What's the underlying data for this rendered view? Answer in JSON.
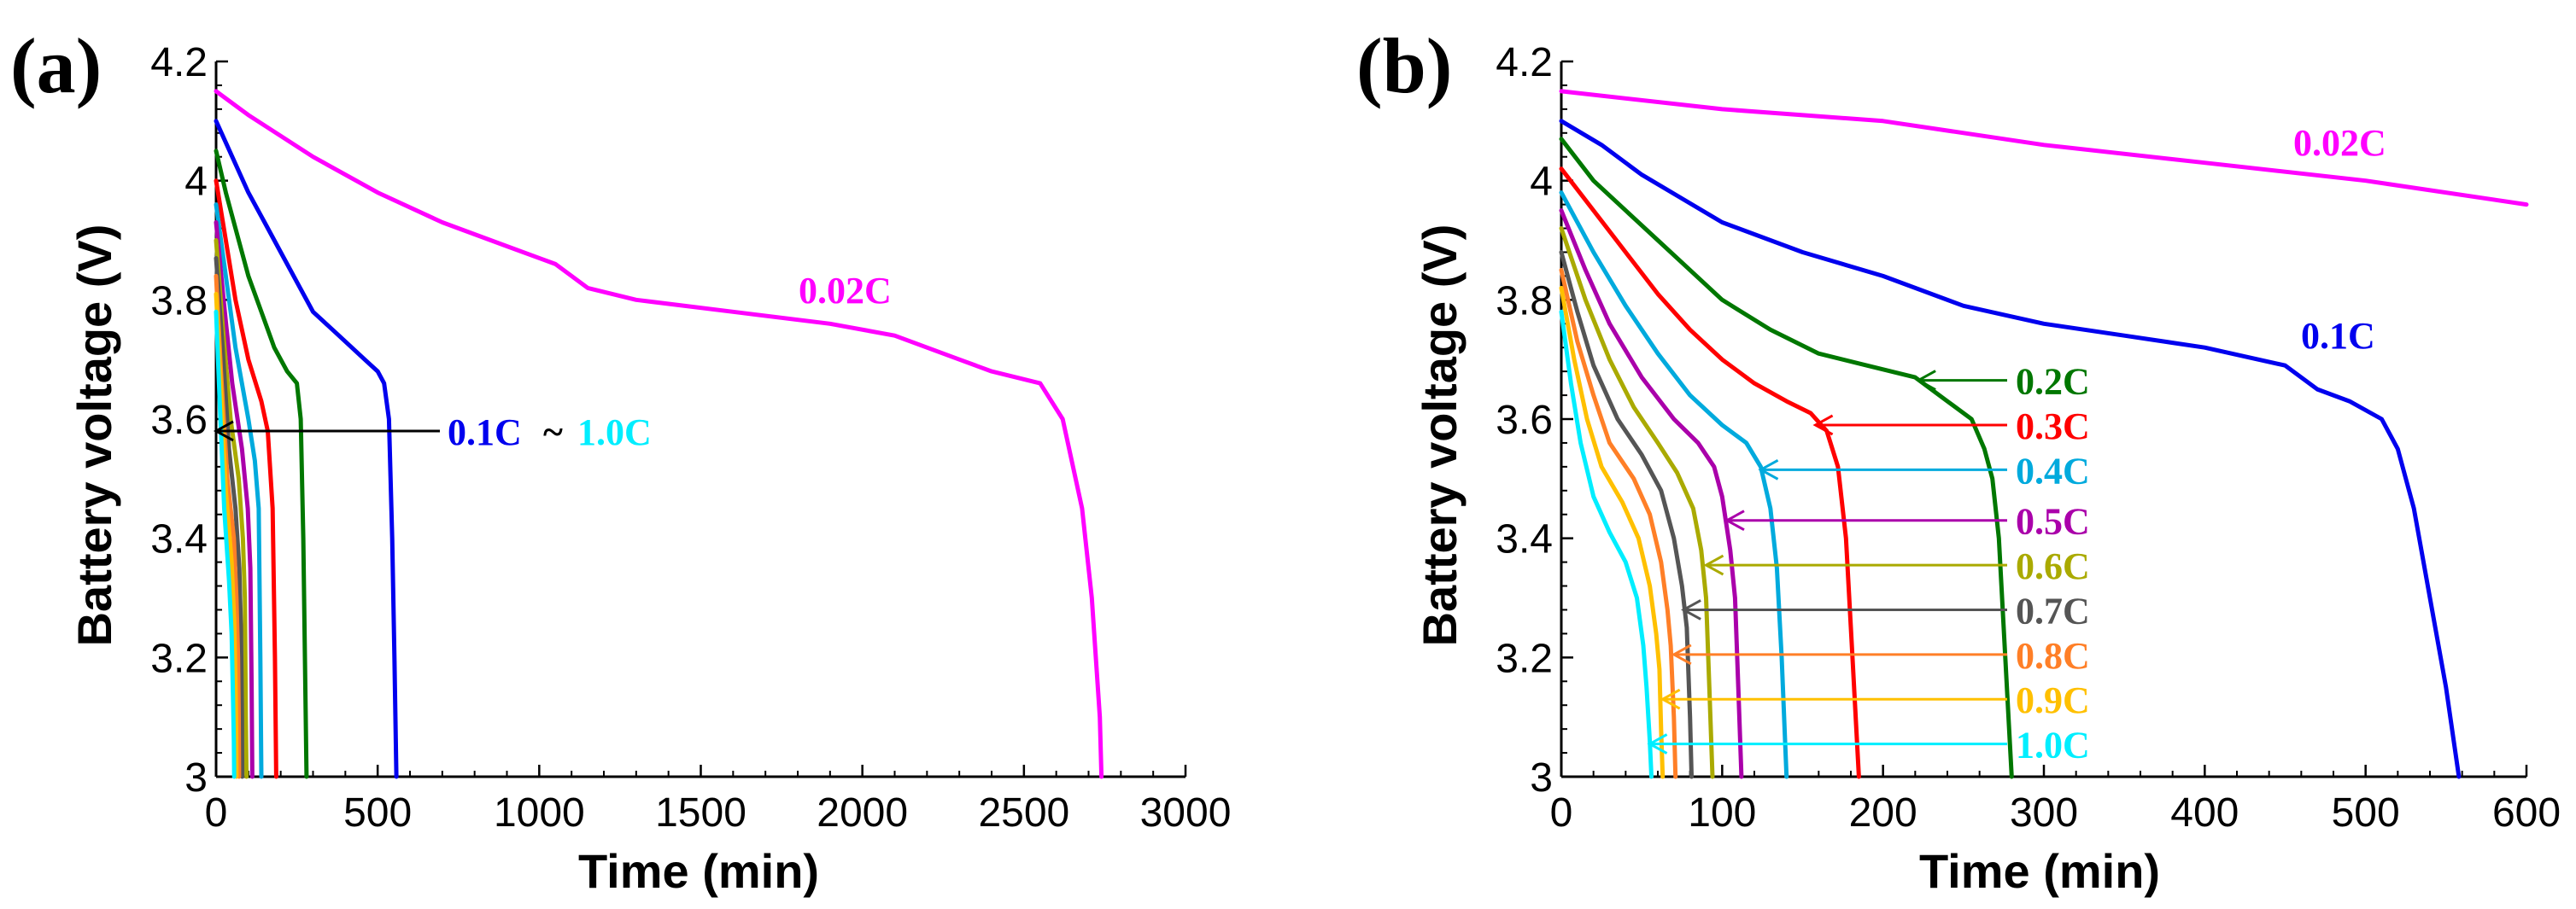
{
  "figure": {
    "panel_a_label": "(a)",
    "panel_b_label": "(b)"
  },
  "colors": {
    "0.02C": "#ff00ff",
    "0.1C": "#0000ee",
    "0.2C": "#007700",
    "0.3C": "#ff0000",
    "0.4C": "#00aadd",
    "0.5C": "#aa00aa",
    "0.6C": "#aaaa00",
    "0.7C": "#555555",
    "0.8C": "#ff7f27",
    "0.9C": "#ffc000",
    "1.0C": "#00eeff"
  },
  "chart_data": [
    {
      "type": "line",
      "panel": "(a)",
      "xlabel": "Time (min)",
      "ylabel": "Battery voltage (V)",
      "xlim": [
        0,
        3000
      ],
      "ylim": [
        3,
        4.2
      ],
      "xticks": [
        0,
        500,
        1000,
        1500,
        2000,
        2500,
        3000
      ],
      "xtick_labels": [
        "0",
        "500",
        "1000",
        "1500",
        "2000",
        "2500",
        "3000"
      ],
      "yticks": [
        3,
        3.2,
        3.4,
        3.6,
        3.8,
        4,
        4.2
      ],
      "ytick_labels": [
        "3",
        "3.2",
        "3.4",
        "3.6",
        "3.8",
        "4",
        "4.2"
      ],
      "annotations": [
        {
          "text": "0.02C",
          "color": "#ff00ff"
        },
        {
          "range_start": "0.1C",
          "range_sep": "~",
          "range_end": "1.0C",
          "start_color": "#0000ee",
          "end_color": "#00eeff",
          "points_to": [
            0,
            3.58
          ]
        }
      ],
      "series": [
        {
          "name": "0.02C",
          "x": [
            0,
            100,
            300,
            500,
            700,
            900,
            1050,
            1150,
            1300,
            1600,
            1900,
            2100,
            2300,
            2400,
            2550,
            2620,
            2680,
            2710,
            2735,
            2740
          ],
          "y": [
            4.15,
            4.11,
            4.04,
            3.98,
            3.93,
            3.89,
            3.86,
            3.82,
            3.8,
            3.78,
            3.76,
            3.74,
            3.7,
            3.68,
            3.66,
            3.6,
            3.45,
            3.3,
            3.1,
            3.0
          ]
        },
        {
          "name": "0.1C",
          "x": [
            0,
            50,
            100,
            150,
            200,
            250,
            300,
            380,
            420,
            460,
            500,
            520,
            535,
            545,
            552,
            558
          ],
          "y": [
            4.1,
            4.04,
            3.98,
            3.93,
            3.88,
            3.83,
            3.78,
            3.74,
            3.72,
            3.7,
            3.68,
            3.66,
            3.6,
            3.4,
            3.2,
            3.0
          ]
        },
        {
          "name": "0.2C",
          "x": [
            0,
            30,
            60,
            100,
            140,
            180,
            220,
            250,
            262,
            270,
            275,
            280
          ],
          "y": [
            4.05,
            3.98,
            3.92,
            3.84,
            3.78,
            3.72,
            3.68,
            3.66,
            3.6,
            3.4,
            3.2,
            3.0
          ]
        },
        {
          "name": "0.3C",
          "x": [
            0,
            30,
            60,
            100,
            140,
            160,
            175,
            182,
            186
          ],
          "y": [
            4.0,
            3.9,
            3.8,
            3.7,
            3.63,
            3.58,
            3.45,
            3.2,
            3.0
          ]
        },
        {
          "name": "0.4C",
          "x": [
            0,
            30,
            60,
            100,
            120,
            132,
            137,
            140
          ],
          "y": [
            3.96,
            3.84,
            3.72,
            3.6,
            3.53,
            3.45,
            3.2,
            3.0
          ]
        },
        {
          "name": "0.5C",
          "x": [
            0,
            25,
            50,
            80,
            98,
            106,
            110,
            112
          ],
          "y": [
            3.93,
            3.79,
            3.66,
            3.55,
            3.45,
            3.35,
            3.15,
            3.0
          ]
        },
        {
          "name": "0.6C",
          "x": [
            0,
            20,
            45,
            70,
            83,
            89,
            92,
            94
          ],
          "y": [
            3.9,
            3.76,
            3.6,
            3.5,
            3.4,
            3.3,
            3.1,
            3.0
          ]
        },
        {
          "name": "0.7C",
          "x": [
            0,
            20,
            40,
            60,
            72,
            77,
            80,
            81
          ],
          "y": [
            3.87,
            3.72,
            3.55,
            3.45,
            3.35,
            3.25,
            3.1,
            3.0
          ]
        },
        {
          "name": "0.8C",
          "x": [
            0,
            15,
            35,
            55,
            63,
            68,
            70,
            71
          ],
          "y": [
            3.84,
            3.68,
            3.5,
            3.4,
            3.3,
            3.2,
            3.1,
            3.0
          ]
        },
        {
          "name": "0.9C",
          "x": [
            0,
            15,
            30,
            48,
            56,
            60,
            62,
            63
          ],
          "y": [
            3.81,
            3.65,
            3.48,
            3.36,
            3.26,
            3.16,
            3.08,
            3.0
          ]
        },
        {
          "name": "1.0C",
          "x": [
            0,
            12,
            25,
            40,
            48,
            52,
            55,
            56
          ],
          "y": [
            3.78,
            3.62,
            3.45,
            3.33,
            3.24,
            3.14,
            3.06,
            3.0
          ]
        }
      ]
    },
    {
      "type": "line",
      "panel": "(b)",
      "xlabel": "Time (min)",
      "ylabel": "Battery voltage (V)",
      "xlim": [
        0,
        600
      ],
      "ylim": [
        3,
        4.2
      ],
      "xticks": [
        0,
        100,
        200,
        300,
        400,
        500,
        600
      ],
      "xtick_labels": [
        "0",
        "100",
        "200",
        "300",
        "400",
        "500",
        "600"
      ],
      "yticks": [
        3,
        3.2,
        3.4,
        3.6,
        3.8,
        4,
        4.2
      ],
      "ytick_labels": [
        "3",
        "3.2",
        "3.4",
        "3.6",
        "3.8",
        "4",
        "4.2"
      ],
      "annotations": [
        {
          "text": "0.02C",
          "color": "#ff00ff"
        },
        {
          "text": "0.1C",
          "color": "#0000ee"
        },
        {
          "text": "0.2C",
          "color": "#007700",
          "points_to": [
            222,
            3.665
          ]
        },
        {
          "text": "0.3C",
          "color": "#ff0000",
          "points_to": [
            158,
            3.59
          ]
        },
        {
          "text": "0.4C",
          "color": "#00aadd",
          "points_to": [
            124,
            3.515
          ]
        },
        {
          "text": "0.5C",
          "color": "#aa00aa",
          "points_to": [
            103,
            3.43
          ]
        },
        {
          "text": "0.6C",
          "color": "#aaaa00",
          "points_to": [
            90,
            3.355
          ]
        },
        {
          "text": "0.7C",
          "color": "#555555",
          "points_to": [
            76,
            3.28
          ]
        },
        {
          "text": "0.8C",
          "color": "#ff7f27",
          "points_to": [
            70,
            3.205
          ]
        },
        {
          "text": "0.9C",
          "color": "#ffc000",
          "points_to": [
            63,
            3.13
          ]
        },
        {
          "text": "1.0C",
          "color": "#00eeff",
          "points_to": [
            55,
            3.055
          ]
        }
      ],
      "series": [
        {
          "name": "0.02C",
          "x": [
            0,
            100,
            200,
            300,
            400,
            500,
            600
          ],
          "y": [
            4.15,
            4.12,
            4.1,
            4.06,
            4.03,
            4.0,
            3.96
          ]
        },
        {
          "name": "0.1C",
          "x": [
            0,
            25,
            50,
            75,
            100,
            150,
            200,
            250,
            300,
            350,
            400,
            450,
            470,
            490,
            510,
            520,
            530,
            540,
            550,
            558
          ],
          "y": [
            4.1,
            4.06,
            4.01,
            3.97,
            3.93,
            3.88,
            3.84,
            3.79,
            3.76,
            3.74,
            3.72,
            3.69,
            3.65,
            3.63,
            3.6,
            3.55,
            3.45,
            3.3,
            3.15,
            3.0
          ]
        },
        {
          "name": "0.2C",
          "x": [
            0,
            20,
            40,
            60,
            80,
            100,
            130,
            160,
            190,
            220,
            240,
            255,
            263,
            268,
            272,
            276,
            280
          ],
          "y": [
            4.07,
            4.0,
            3.95,
            3.9,
            3.85,
            3.8,
            3.75,
            3.71,
            3.69,
            3.67,
            3.63,
            3.6,
            3.55,
            3.5,
            3.4,
            3.2,
            3.0
          ]
        },
        {
          "name": "0.3C",
          "x": [
            0,
            20,
            40,
            60,
            80,
            100,
            120,
            140,
            155,
            165,
            172,
            177,
            181,
            185
          ],
          "y": [
            4.02,
            3.95,
            3.88,
            3.81,
            3.75,
            3.7,
            3.66,
            3.63,
            3.61,
            3.58,
            3.52,
            3.4,
            3.2,
            3.0
          ]
        },
        {
          "name": "0.4C",
          "x": [
            0,
            20,
            40,
            60,
            80,
            100,
            115,
            124,
            130,
            134,
            137,
            140
          ],
          "y": [
            3.98,
            3.88,
            3.79,
            3.71,
            3.64,
            3.59,
            3.56,
            3.52,
            3.45,
            3.35,
            3.2,
            3.0
          ]
        },
        {
          "name": "0.5C",
          "x": [
            0,
            15,
            30,
            50,
            70,
            85,
            95,
            100,
            105,
            108,
            110,
            112
          ],
          "y": [
            3.95,
            3.85,
            3.76,
            3.67,
            3.6,
            3.56,
            3.52,
            3.47,
            3.38,
            3.3,
            3.15,
            3.0
          ]
        },
        {
          "name": "0.6C",
          "x": [
            0,
            15,
            30,
            45,
            60,
            72,
            82,
            87,
            90,
            92,
            94
          ],
          "y": [
            3.92,
            3.8,
            3.7,
            3.62,
            3.56,
            3.51,
            3.45,
            3.38,
            3.3,
            3.15,
            3.0
          ]
        },
        {
          "name": "0.7C",
          "x": [
            0,
            10,
            20,
            35,
            50,
            62,
            70,
            75,
            78,
            80,
            81
          ],
          "y": [
            3.88,
            3.78,
            3.69,
            3.6,
            3.54,
            3.48,
            3.4,
            3.32,
            3.25,
            3.1,
            3.0
          ]
        },
        {
          "name": "0.8C",
          "x": [
            0,
            10,
            20,
            30,
            45,
            55,
            62,
            66,
            68,
            70,
            71
          ],
          "y": [
            3.85,
            3.73,
            3.64,
            3.56,
            3.5,
            3.44,
            3.36,
            3.28,
            3.22,
            3.1,
            3.0
          ]
        },
        {
          "name": "0.9C",
          "x": [
            0,
            8,
            16,
            25,
            38,
            48,
            55,
            59,
            61,
            62,
            63
          ],
          "y": [
            3.82,
            3.7,
            3.6,
            3.52,
            3.46,
            3.4,
            3.32,
            3.24,
            3.18,
            3.08,
            3.0
          ]
        },
        {
          "name": "1.0C",
          "x": [
            0,
            6,
            12,
            20,
            30,
            40,
            47,
            51,
            53,
            55,
            56
          ],
          "y": [
            3.78,
            3.66,
            3.56,
            3.47,
            3.41,
            3.36,
            3.3,
            3.22,
            3.15,
            3.06,
            3.0
          ]
        }
      ]
    }
  ]
}
